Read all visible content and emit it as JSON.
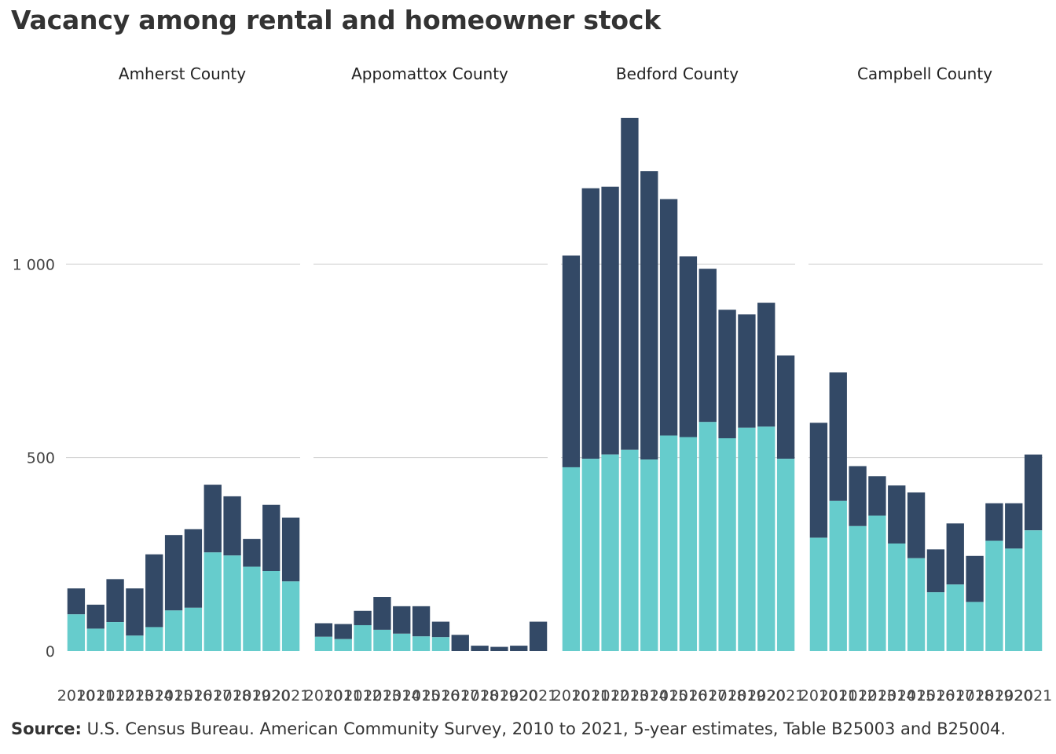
{
  "title": "Vacancy among rental and homeowner stock",
  "source_label": "Source:",
  "source_text": "U.S. Census Bureau. American Community Survey, 2010 to 2021, 5-year estimates, Table B25003 and B25004.",
  "colors": {
    "lower": "#66cccc",
    "upper": "#334966",
    "grid": "#d0d0d0"
  },
  "chart_data": {
    "type": "bar",
    "stacked": true,
    "ylim": [
      0,
      1400
    ],
    "yticks": [
      0,
      500,
      1000
    ],
    "ytick_labels": [
      "0",
      "500",
      "1 000"
    ],
    "categories": [
      "2010",
      "2011",
      "2012",
      "2013",
      "2014",
      "2015",
      "2016",
      "2017",
      "2018",
      "2019",
      "2020",
      "2021"
    ],
    "panels": [
      {
        "title": "Amherst County",
        "lower": [
          95,
          58,
          75,
          40,
          62,
          105,
          112,
          255,
          247,
          218,
          207,
          180
        ],
        "total": [
          162,
          120,
          186,
          162,
          250,
          300,
          315,
          430,
          400,
          290,
          378,
          345
        ]
      },
      {
        "title": "Appomattox County",
        "lower": [
          37,
          31,
          67,
          55,
          45,
          38,
          36,
          0,
          0,
          0,
          0,
          0
        ],
        "total": [
          72,
          70,
          104,
          140,
          116,
          116,
          76,
          42,
          14,
          11,
          14,
          76
        ]
      },
      {
        "title": "Bedford County",
        "lower": [
          475,
          497,
          508,
          520,
          495,
          557,
          553,
          592,
          550,
          577,
          580,
          497
        ],
        "total": [
          1022,
          1196,
          1200,
          1378,
          1240,
          1168,
          1020,
          988,
          882,
          870,
          900,
          764
        ]
      },
      {
        "title": "Campbell County",
        "lower": [
          293,
          388,
          323,
          350,
          278,
          240,
          152,
          172,
          127,
          285,
          265,
          312
        ],
        "total": [
          590,
          720,
          478,
          452,
          428,
          410,
          263,
          330,
          246,
          382,
          382,
          508
        ]
      }
    ]
  }
}
